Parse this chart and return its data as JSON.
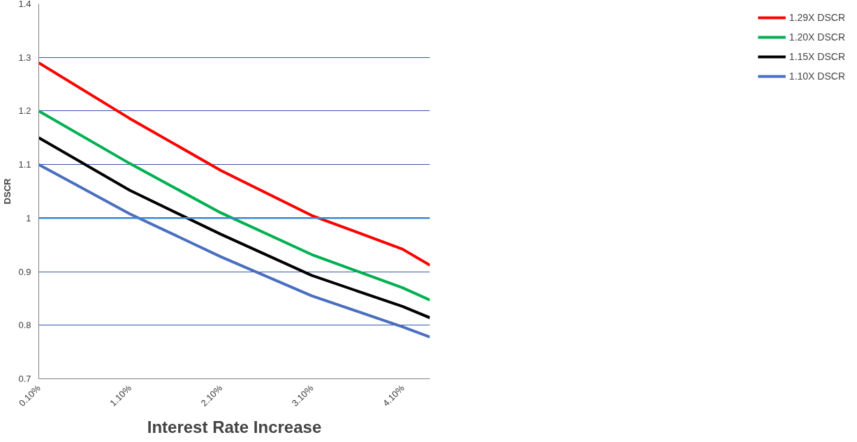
{
  "chart_data": {
    "type": "line",
    "xlabel": "Interest Rate Increase",
    "ylabel": "DSCR",
    "x": [
      0.1,
      1.1,
      2.1,
      3.1,
      4.1,
      4.4
    ],
    "xlim": [
      0.1,
      4.4
    ],
    "xticks": [
      {
        "value": 0.1,
        "label": "0.10%"
      },
      {
        "value": 1.1,
        "label": "1.10%"
      },
      {
        "value": 2.1,
        "label": "2.10%"
      },
      {
        "value": 3.1,
        "label": "3.10%"
      },
      {
        "value": 4.1,
        "label": "4.10%"
      }
    ],
    "ylim": [
      0.7,
      1.4
    ],
    "yticks": [
      0.7,
      0.8,
      0.9,
      1,
      1.1,
      1.2,
      1.3,
      1.4
    ],
    "grid": "y",
    "legend": "right",
    "ref_lines": [
      {
        "axis": "y",
        "value": 1,
        "color": "#3a86d8"
      }
    ],
    "series": [
      {
        "name": "1.29X DSCR",
        "color": "#ff0000",
        "values": [
          1.29,
          1.186,
          1.089,
          1.005,
          0.942,
          0.912
        ]
      },
      {
        "name": "1.20X DSCR",
        "color": "#00b050",
        "values": [
          1.2,
          1.102,
          1.01,
          0.932,
          0.87,
          0.847
        ]
      },
      {
        "name": "1.15X DSCR",
        "color": "#000000",
        "values": [
          1.15,
          1.052,
          0.97,
          0.893,
          0.835,
          0.814
        ]
      },
      {
        "name": "1.10X DSCR",
        "color": "#4a6fc0",
        "values": [
          1.1,
          1.008,
          0.928,
          0.855,
          0.797,
          0.778
        ]
      }
    ]
  }
}
